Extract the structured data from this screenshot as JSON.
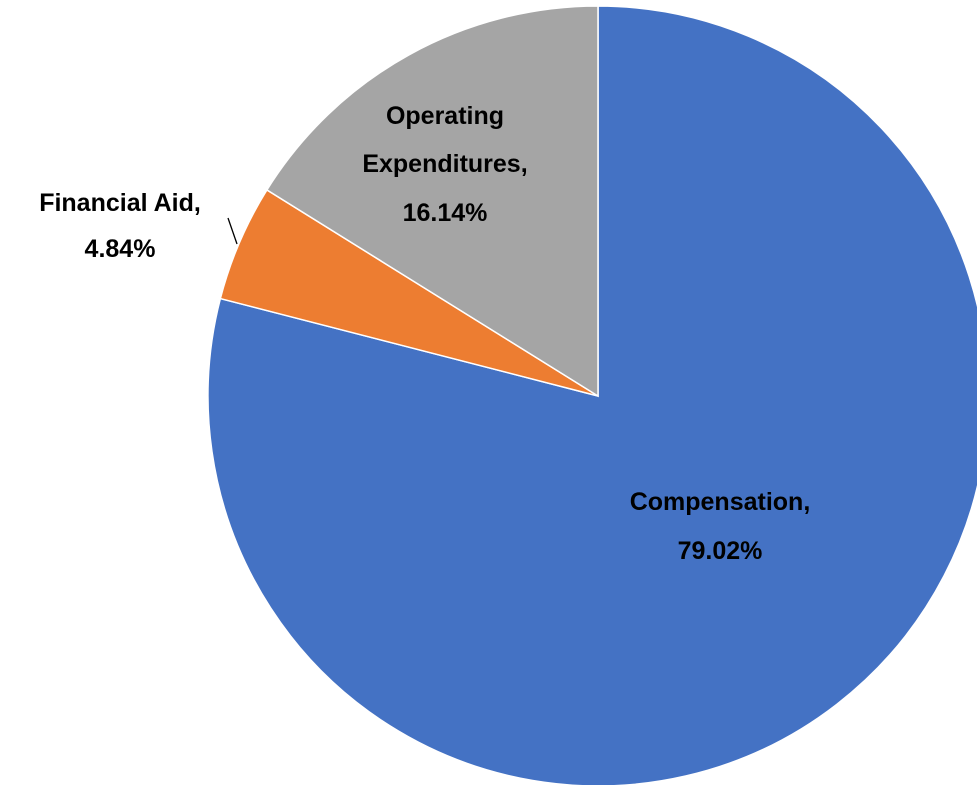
{
  "chart_data": {
    "type": "pie",
    "title": "",
    "legend": "none",
    "start": "12 o'clock, clockwise",
    "slices": [
      {
        "label": "Compensation",
        "value": 79.02,
        "label_line1": "Compensation,",
        "label_line2": "79.02%",
        "color": "#4472C4"
      },
      {
        "label": "Financial Aid",
        "value": 4.84,
        "label_line1": "Financial Aid,",
        "label_line2": "4.84%",
        "color": "#ED7D31"
      },
      {
        "label": "Operating Expenditures",
        "value": 16.14,
        "label_line1": "Operating",
        "label_line2": "Expenditures,",
        "label_line3": "16.14%",
        "color": "#A5A5A5"
      }
    ]
  }
}
